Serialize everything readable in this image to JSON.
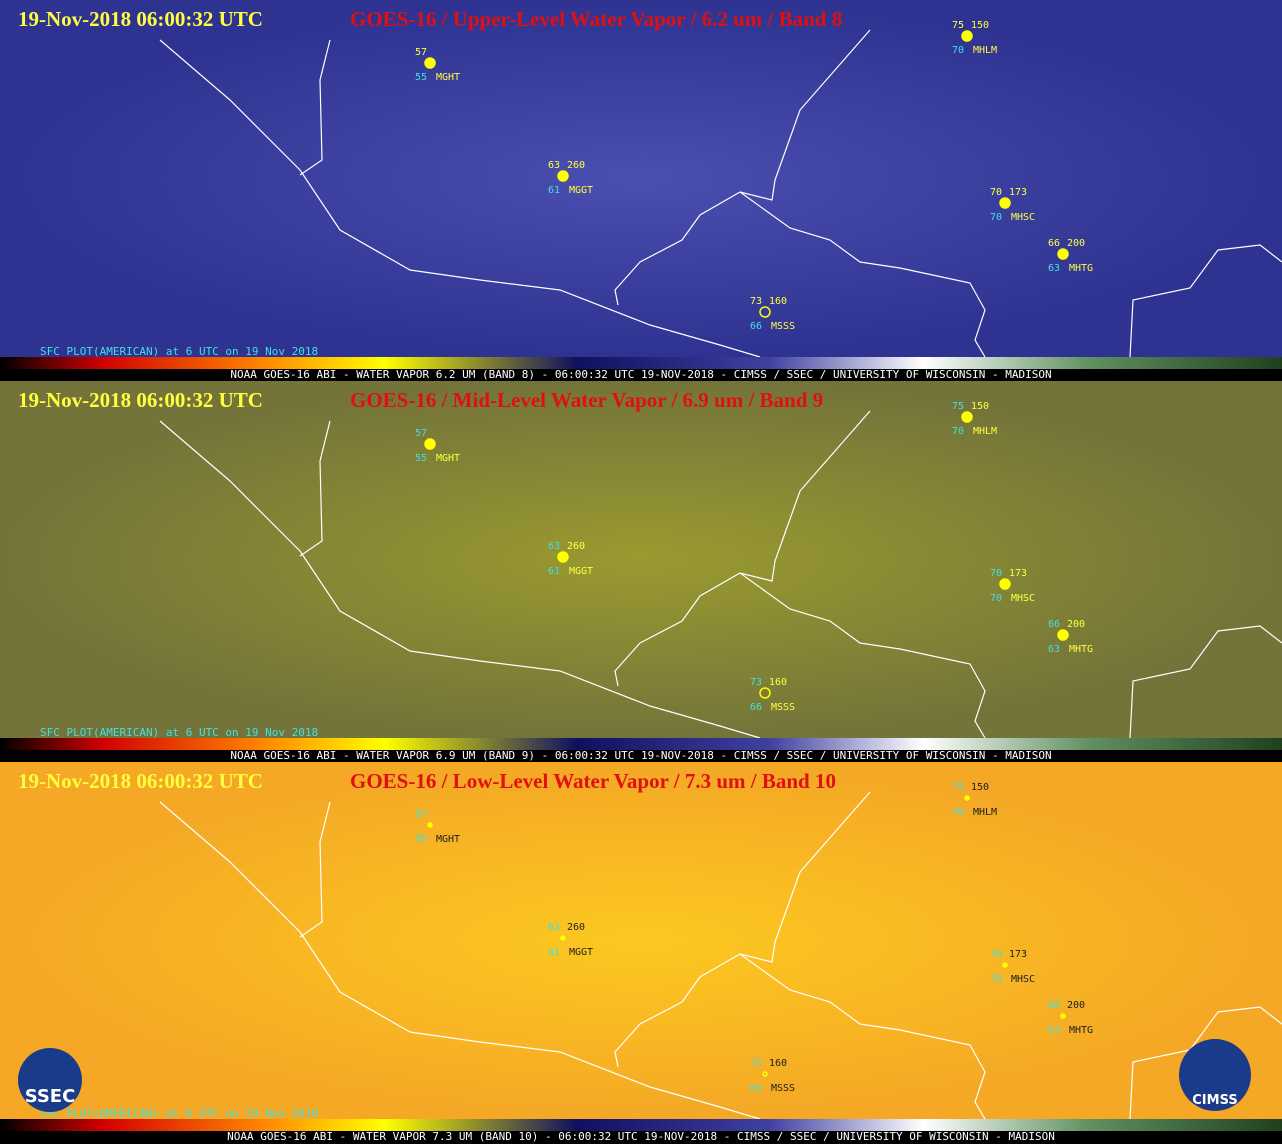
{
  "panels": [
    {
      "timestamp": "19-Nov-2018  06:00:32 UTC",
      "title": "GOES-16 / Upper-Level Water Vapor / 6.2 um / Band 8",
      "sfc_label": "SFC PLOT(AMERICAN) at 6 UTC on 19 Nov 2018",
      "caption": "NOAA GOES-16 ABI - WATER VAPOR 6.2 UM (BAND 8) - 06:00:32 UTC 19-NOV-2018 - CIMSS / SSEC / UNIVERSITY OF WISCONSIN - MADISON"
    },
    {
      "timestamp": "19-Nov-2018  06:00:32 UTC",
      "title": "GOES-16 / Mid-Level Water Vapor / 6.9 um / Band 9",
      "sfc_label": "SFC PLOT(AMERICAN) at 6 UTC on 19 Nov 2018",
      "caption": "NOAA GOES-16 ABI - WATER VAPOR 6.9 UM (BAND 9) - 06:00:32 UTC 19-NOV-2018 - CIMSS / SSEC / UNIVERSITY OF WISCONSIN - MADISON"
    },
    {
      "timestamp": "19-Nov-2018  06:00:32 UTC",
      "title": "GOES-16 / Low-Level Water Vapor / 7.3 um / Band 10",
      "sfc_label": "SFC PLOT(AMERICAN) at 6 UTC on 19 Nov 2018",
      "caption": "NOAA GOES-16 ABI - WATER VAPOR 7.3 UM (BAND 10) - 06:00:32 UTC 19-NOV-2018 - CIMSS / SSEC / UNIVERSITY OF WISCONSIN - MADISON"
    }
  ],
  "stations": [
    {
      "temp": 57,
      "dew": 55,
      "id": "MGHT"
    },
    {
      "temp": 63,
      "pressure": 260,
      "dew": 61,
      "id": "MGGT"
    },
    {
      "temp": 73,
      "pressure": 160,
      "dew": 66,
      "id": "MSSS"
    },
    {
      "temp": 75,
      "pressure": 150,
      "dew": 70,
      "id": "MHLM"
    },
    {
      "temp": 70,
      "pressure": 173,
      "dew": 70,
      "id": "MHSC"
    },
    {
      "temp": 66,
      "pressure": 200,
      "dew": 63,
      "id": "MHTG"
    }
  ],
  "logos": [
    "SSEC",
    "CIMSS"
  ]
}
